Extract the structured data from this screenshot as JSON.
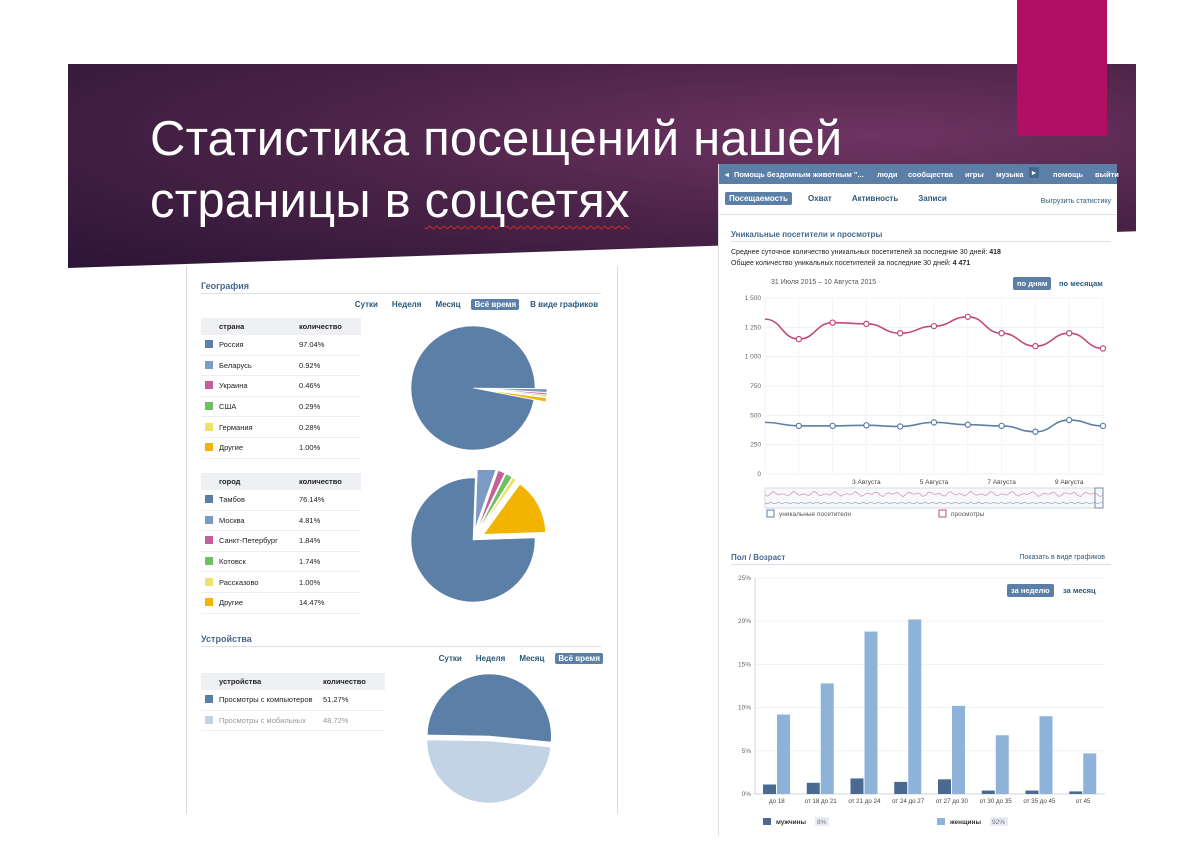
{
  "slide": {
    "title_line1": "Статистика посещений нашей",
    "title_line2_a": "страницы в ",
    "title_line2_b": "соцсетях"
  },
  "colors": {
    "banner": "#4d2449",
    "accent": "#b10f64",
    "vk_blue": "#5b7fa6",
    "pink_line": "#c2497c",
    "blue_line": "#5b7fa6"
  },
  "geo": {
    "title": "География",
    "tabs": [
      "Сутки",
      "Неделя",
      "Месяц",
      "Всё время",
      "В виде графиков"
    ],
    "active_tab": "Всё время",
    "country_table": {
      "headers": [
        "страна",
        "количество"
      ],
      "rows": [
        {
          "name": "Россия",
          "value": "97.04%",
          "color": "#5b7fa6"
        },
        {
          "name": "Беларусь",
          "value": "0.92%",
          "color": "#7c9bc4"
        },
        {
          "name": "Украина",
          "value": "0.46%",
          "color": "#c55f99"
        },
        {
          "name": "США",
          "value": "0.29%",
          "color": "#6fbf63"
        },
        {
          "name": "Германия",
          "value": "0.28%",
          "color": "#ece46a"
        },
        {
          "name": "Другие",
          "value": "1.00%",
          "color": "#f1b400"
        }
      ]
    },
    "city_table": {
      "headers": [
        "город",
        "количество"
      ],
      "rows": [
        {
          "name": "Тамбов",
          "value": "76.14%",
          "color": "#5b7fa6"
        },
        {
          "name": "Москва",
          "value": "4.81%",
          "color": "#7c9bc4"
        },
        {
          "name": "Санкт-Петербург",
          "value": "1.84%",
          "color": "#c55f99"
        },
        {
          "name": "Котовск",
          "value": "1.74%",
          "color": "#6fbf63"
        },
        {
          "name": "Рассказово",
          "value": "1.00%",
          "color": "#ece46a"
        },
        {
          "name": "Другие",
          "value": "14.47%",
          "color": "#f1b400"
        }
      ]
    }
  },
  "devices": {
    "title": "Устройства",
    "tabs": [
      "Сутки",
      "Неделя",
      "Месяц",
      "Всё время"
    ],
    "active_tab": "Всё время",
    "headers": [
      "устройства",
      "количество"
    ],
    "rows": [
      {
        "name": "Просмотры с компьютеров",
        "value": "51.27%",
        "color": "#5b7fa6"
      },
      {
        "name": "Просмотры с мобильных",
        "value": "48.72%",
        "color": "#c2d3e6"
      }
    ]
  },
  "vk": {
    "nav": {
      "back": "Помощь бездомным животным \"...",
      "items": [
        "люди",
        "сообщества",
        "игры",
        "музыка",
        "помощь",
        "выйти"
      ]
    },
    "tabs": [
      "Посещаемость",
      "Охват",
      "Активность",
      "Записи"
    ],
    "active_tab": "Посещаемость",
    "export": "Выгрузить статистику",
    "visitors": {
      "title": "Уникальные посетители и просмотры",
      "avg_text": "Среднее суточное количество уникальных посетителей за последние 30 дней: ",
      "avg_value": "418",
      "total_text": "Общее количество уникальных посетителей за последние 30 дней: ",
      "total_value": "4 471",
      "period": "31 Июля 2015 – 10 Августа 2015",
      "btn_days": "по дням",
      "btn_months": "по месяцам",
      "legend_unique": "уникальные посетители",
      "legend_views": "просмотры"
    },
    "gender": {
      "title": "Пол / Возраст",
      "show_graphs": "Показать в виде графиков",
      "btn_week": "за неделю",
      "btn_month": "за месяц",
      "legend_men": "мужчины",
      "legend_men_pct": "8%",
      "legend_women": "женщины",
      "legend_women_pct": "92%"
    }
  },
  "chart_data": [
    {
      "type": "pie",
      "title": "",
      "labels": [
        "Россия",
        "Беларусь",
        "Украина",
        "США",
        "Германия",
        "Другие"
      ],
      "values": [
        97.04,
        0.92,
        0.46,
        0.29,
        0.28,
        1.0
      ],
      "colors": [
        "#5b7fa6",
        "#7c9bc4",
        "#c55f99",
        "#6fbf63",
        "#ece46a",
        "#f1b400"
      ]
    },
    {
      "type": "pie",
      "title": "",
      "labels": [
        "Тамбов",
        "Москва",
        "Санкт-Петербург",
        "Котовск",
        "Рассказово",
        "Другие"
      ],
      "values": [
        76.14,
        4.81,
        1.84,
        1.74,
        1.0,
        14.47
      ],
      "colors": [
        "#5b7fa6",
        "#7c9bc4",
        "#c55f99",
        "#6fbf63",
        "#ece46a",
        "#f1b400"
      ]
    },
    {
      "type": "pie",
      "title": "",
      "labels": [
        "Просмотры с компьютеров",
        "Просмотры с мобильных"
      ],
      "values": [
        51.27,
        48.72
      ],
      "colors": [
        "#5b7fa6",
        "#c2d3e6"
      ]
    },
    {
      "type": "line",
      "title": "Уникальные посетители и просмотры",
      "x": [
        "31 Июля",
        "1 Августа",
        "2 Августа",
        "3 Августа",
        "4 Августа",
        "5 Августа",
        "6 Августа",
        "7 Августа",
        "8 Августа",
        "9 Августа",
        "10 Августа"
      ],
      "xticks": [
        "3 Августа",
        "5 Августа",
        "7 Августа",
        "9 Августа"
      ],
      "ylim": [
        0,
        1500
      ],
      "yticks": [
        "0",
        "250",
        "500",
        "750",
        "1 000",
        "1 250",
        "1 500"
      ],
      "series": [
        {
          "name": "просмотры",
          "values": [
            1320,
            1150,
            1290,
            1280,
            1200,
            1260,
            1340,
            1200,
            1090,
            1200,
            1070
          ]
        },
        {
          "name": "уникальные посетители",
          "values": [
            440,
            410,
            410,
            415,
            405,
            440,
            420,
            410,
            360,
            460,
            410
          ]
        }
      ]
    },
    {
      "type": "bar",
      "title": "Пол / Возраст",
      "categories": [
        "до 18",
        "от 18 до 21",
        "от 21 до 24",
        "от 24 до 27",
        "от 27 до 30",
        "от 30 до 35",
        "от 35 до 45",
        "от 45"
      ],
      "ylim": [
        0,
        25
      ],
      "yticks": [
        "0%",
        "5%",
        "10%",
        "15%",
        "20%",
        "25%"
      ],
      "series": [
        {
          "name": "мужчины",
          "values": [
            1.1,
            1.3,
            1.8,
            1.4,
            1.7,
            0.4,
            0.4,
            0.3
          ]
        },
        {
          "name": "женщины",
          "values": [
            9.2,
            12.8,
            18.8,
            20.2,
            10.2,
            6.8,
            9.0,
            4.7
          ]
        }
      ]
    }
  ]
}
